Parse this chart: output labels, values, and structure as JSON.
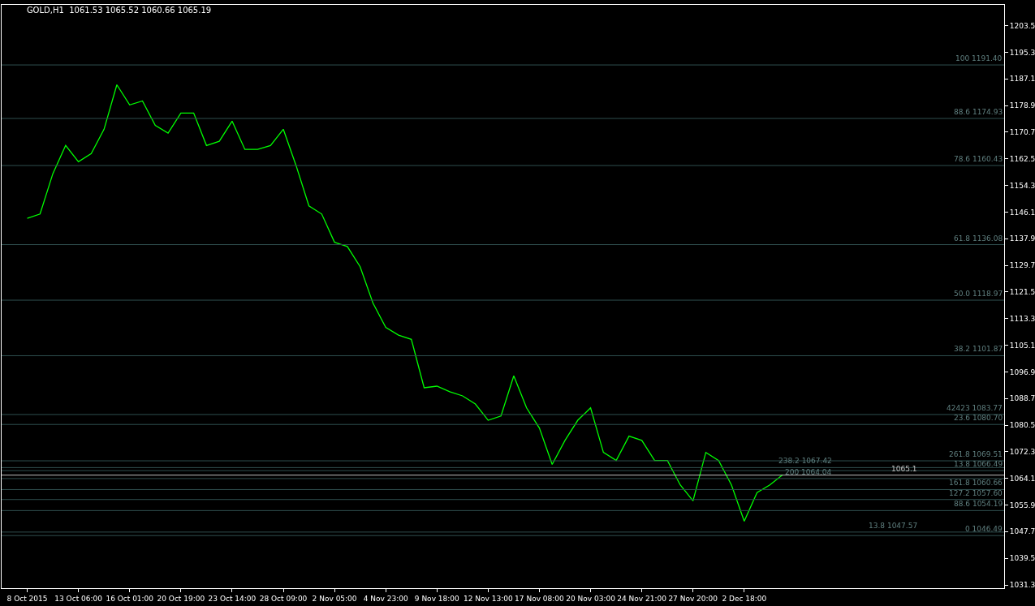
{
  "chart_data": {
    "type": "line",
    "title": "GOLD,H1  1061.53 1065.52 1060.66 1065.19",
    "categories": [
      "8 Oct 2015",
      null,
      null,
      null,
      "13 Oct 06:00",
      null,
      null,
      null,
      "16 Oct 01:00",
      null,
      null,
      null,
      "20 Oct 19:00",
      null,
      null,
      null,
      "23 Oct 14:00",
      null,
      null,
      null,
      "28 Oct 09:00",
      null,
      null,
      null,
      "2 Nov 05:00",
      null,
      null,
      null,
      "4 Nov 23:00",
      null,
      null,
      null,
      "9 Nov 18:00",
      null,
      null,
      null,
      "12 Nov 13:00",
      null,
      null,
      null,
      "17 Nov 08:00",
      null,
      null,
      null,
      "20 Nov 03:00",
      null,
      null,
      null,
      "24 Nov 21:00",
      null,
      null,
      null,
      "27 Nov 20:00",
      null,
      null,
      null,
      "2 Dec 18:00",
      null,
      null,
      null,
      null,
      null,
      null,
      null,
      null,
      null,
      null,
      null,
      null,
      null,
      null,
      null,
      null,
      null,
      null,
      null,
      null
    ],
    "series": [
      {
        "color": "#00ff00",
        "values": [
          1144.2,
          1145.5,
          1157.9,
          1166.6,
          1161.6,
          1164.1,
          1171.6,
          1185.3,
          1179.1,
          1180.3,
          1172.8,
          1170.4,
          1176.6,
          1176.6,
          1166.6,
          1167.9,
          1174.1,
          1165.4,
          1165.4,
          1166.6,
          1171.6,
          1160.4,
          1148.0,
          1145.5,
          1136.8,
          1135.5,
          1129.3,
          1118.1,
          1110.6,
          1108.2,
          1106.9,
          1092.0,
          1092.5,
          1090.8,
          1089.5,
          1087.0,
          1082.0,
          1083.3,
          1095.7,
          1085.8,
          1079.6,
          1068.4,
          1075.8,
          1082.0,
          1085.8,
          1072.1,
          1069.6,
          1077.1,
          1075.8,
          1069.6,
          1069.6,
          1062.1,
          1057.2,
          1072.1,
          1069.6,
          1062.1,
          1050.9,
          1059.7,
          1062.1,
          1065.2,
          null,
          null,
          null,
          null,
          null,
          null,
          null,
          null,
          null,
          null,
          null,
          null,
          null,
          null,
          null,
          null,
          null
        ]
      }
    ],
    "ylim": [
      1030.3,
      1209.9
    ],
    "yticks": [
      1031.3,
      1039.5,
      1047.7,
      1055.9,
      1064.1,
      1072.3,
      1080.5,
      1088.7,
      1096.9,
      1105.1,
      1113.3,
      1121.5,
      1129.7,
      1137.9,
      1146.1,
      1154.3,
      1162.5,
      1170.7,
      1178.9,
      1187.1,
      1195.3,
      1203.5
    ],
    "marker": "none",
    "line_style": "solid",
    "ref_lines": [
      {
        "axis": "y",
        "value": 1191.4,
        "label": "100 1191.40",
        "color": "#2f4f4f"
      },
      {
        "axis": "y",
        "value": 1174.93,
        "label": "88.6 1174.93",
        "color": "#2f4f4f"
      },
      {
        "axis": "y",
        "value": 1160.43,
        "label": "78.6 1160.43",
        "color": "#2f4f4f"
      },
      {
        "axis": "y",
        "value": 1136.08,
        "label": "61.8 1136.08",
        "color": "#2f4f4f"
      },
      {
        "axis": "y",
        "value": 1118.97,
        "label": "50.0 1118.97",
        "color": "#2f4f4f"
      },
      {
        "axis": "y",
        "value": 1101.87,
        "label": "38.2 1101.87",
        "color": "#2f4f4f"
      },
      {
        "axis": "y",
        "value": 1080.7,
        "label": "23.6 1080.70",
        "color": "#2f4f4f"
      },
      {
        "axis": "y",
        "value": 1066.49,
        "label": "13.8 1066.49",
        "color": "#2f4f4f"
      },
      {
        "axis": "y",
        "value": 1046.49,
        "label": "0 1046.49",
        "color": "#2f4f4f"
      },
      {
        "axis": "y",
        "value": 1065.1,
        "label": "1065.1",
        "color": "#c0c0c0"
      },
      {
        "axis": "y",
        "value": 1083.77,
        "label": "42423 1083.77",
        "color": "#2f4f4f"
      },
      {
        "axis": "y",
        "value": 1069.51,
        "label": "261.8 1069.51",
        "color": "#2f4f4f"
      },
      {
        "axis": "y",
        "value": 1067.42,
        "label": "238.2 1067.42",
        "color": "#2f4f4f"
      },
      {
        "axis": "y",
        "value": 1064.04,
        "label": "200 1064.04",
        "color": "#2f4f4f"
      },
      {
        "axis": "y",
        "value": 1060.66,
        "label": "161.8 1060.66",
        "color": "#2f4f4f"
      },
      {
        "axis": "y",
        "value": 1057.6,
        "label": "127.2 1057.60",
        "color": "#2f4f4f"
      },
      {
        "axis": "y",
        "value": 1054.19,
        "label": "88.6 1054.19",
        "color": "#2f4f4f"
      },
      {
        "axis": "y",
        "value": 1047.57,
        "label": "13.8 1047.57",
        "color": "#2f4f4f"
      }
    ]
  }
}
